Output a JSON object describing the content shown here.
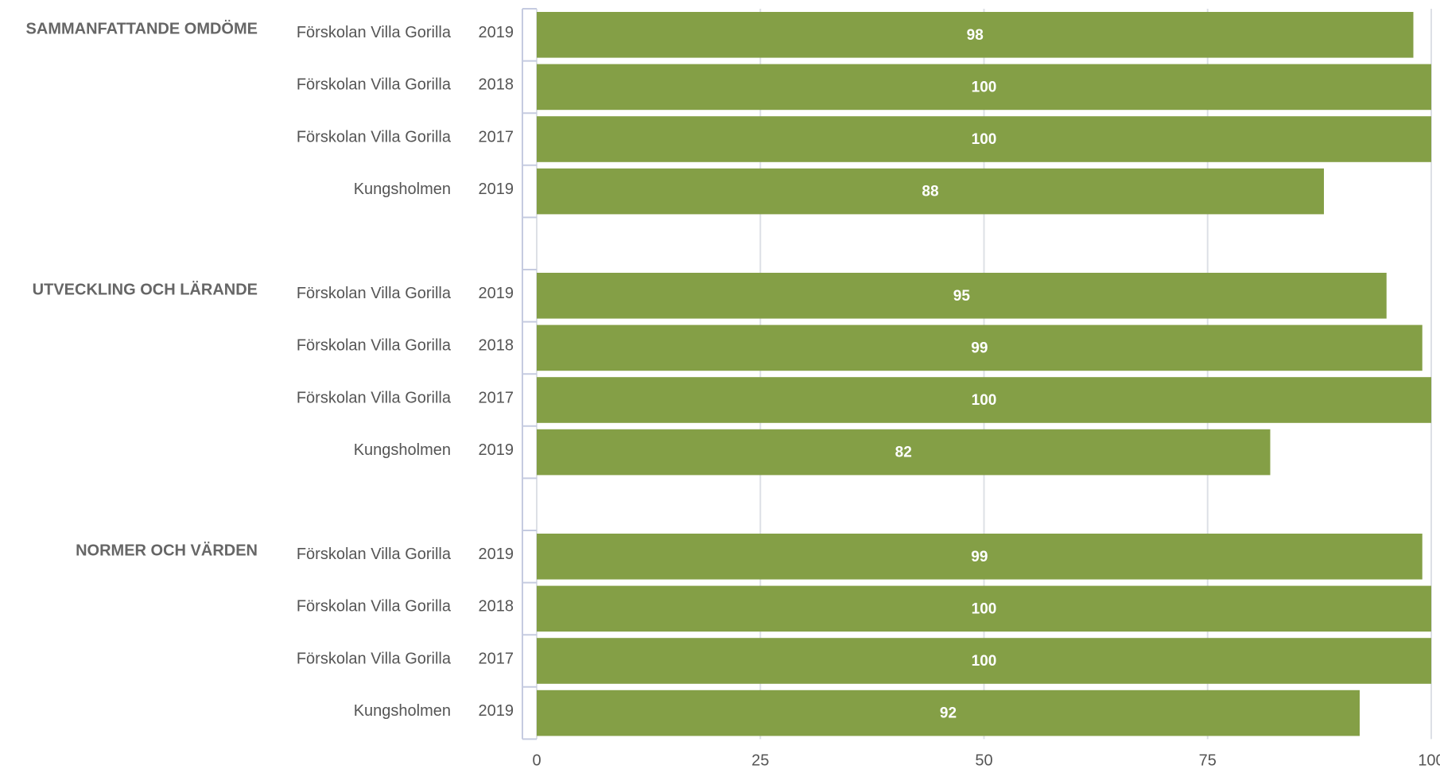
{
  "chart_data": {
    "type": "bar",
    "orientation": "horizontal",
    "color": "#849f46",
    "grid": true,
    "xlim": [
      0,
      100
    ],
    "xticks": [
      0,
      25,
      50,
      75,
      100
    ],
    "groups": [
      {
        "name": "SAMMANFATTANDE OMDÖME",
        "categories": [
          {
            "name": "Förskolan Villa Gorilla",
            "year": "2019"
          },
          {
            "name": "Förskolan Villa Gorilla",
            "year": "2018"
          },
          {
            "name": "Förskolan Villa Gorilla",
            "year": "2017"
          },
          {
            "name": "Kungsholmen",
            "year": "2019"
          }
        ],
        "values": [
          98,
          100,
          100,
          88
        ]
      },
      {
        "name": "UTVECKLING OCH LÄRANDE",
        "categories": [
          {
            "name": "Förskolan Villa Gorilla",
            "year": "2019"
          },
          {
            "name": "Förskolan Villa Gorilla",
            "year": "2018"
          },
          {
            "name": "Förskolan Villa Gorilla",
            "year": "2017"
          },
          {
            "name": "Kungsholmen",
            "year": "2019"
          }
        ],
        "values": [
          95,
          99,
          100,
          82
        ]
      },
      {
        "name": "NORMER OCH VÄRDEN",
        "categories": [
          {
            "name": "Förskolan Villa Gorilla",
            "year": "2019"
          },
          {
            "name": "Förskolan Villa Gorilla",
            "year": "2018"
          },
          {
            "name": "Förskolan Villa Gorilla",
            "year": "2017"
          },
          {
            "name": "Kungsholmen",
            "year": "2019"
          }
        ],
        "values": [
          99,
          100,
          100,
          92
        ]
      }
    ]
  }
}
